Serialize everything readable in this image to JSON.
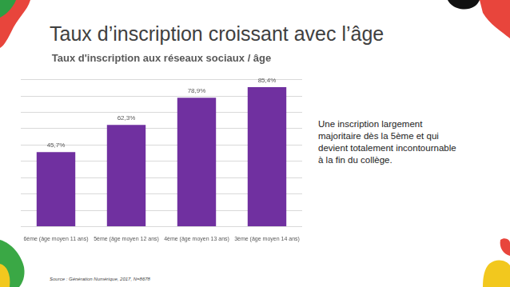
{
  "slide": {
    "heading": "Taux d’inscription croissant avec l’âge",
    "text": [
      "Une inscription largement",
      "majoritaire dès la 5ème et qui",
      "devient totalement incontournable",
      "à la fin du collège."
    ],
    "source": "Source : Génération Numérique, 2017, N=8678"
  },
  "chart_data": {
    "type": "bar",
    "title": "Taux d'inscription aux réseaux sociaux / âge",
    "categories": [
      "6ème (âge moyen 11 ans)",
      "5ème (âge moyen 12 ans)",
      "4ème (âge moyen 13 ans)",
      "3ème (âge moyen 14 ans)"
    ],
    "values": [
      45.7,
      62.3,
      78.9,
      85.4
    ],
    "value_labels": [
      "45,7%",
      "62,3%",
      "78,9%",
      "85,4%"
    ],
    "color": "#7030a0",
    "ylim": [
      0,
      90
    ],
    "yticks": [
      0,
      10,
      20,
      30,
      40,
      50,
      60,
      70,
      80,
      90
    ],
    "grid": true,
    "data_labels": true,
    "tick_labels": "x"
  }
}
